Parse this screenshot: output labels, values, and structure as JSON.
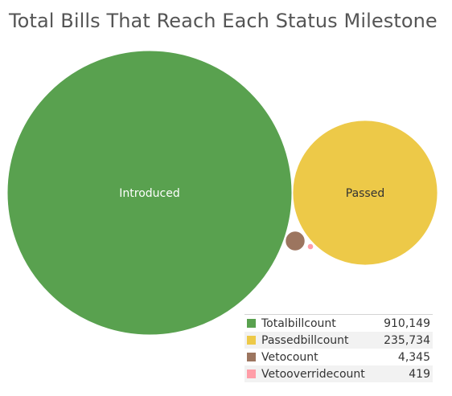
{
  "chart_data": {
    "type": "bubble",
    "title": "Total Bills That Reach Each Status Milestone",
    "series": [
      {
        "name": "Totalbillcount",
        "label": "Introduced",
        "value": 910149,
        "value_text": "910,149",
        "color": "#59a14f",
        "label_color": "#ffffff"
      },
      {
        "name": "Passedbillcount",
        "label": "Passed",
        "value": 235734,
        "value_text": "235,734",
        "color": "#edc948",
        "label_color": "#333333"
      },
      {
        "name": "Vetocount",
        "label": "",
        "value": 4345,
        "value_text": "4,345",
        "color": "#9c755f",
        "label_color": "#333333"
      },
      {
        "name": "Vetooverridecount",
        "label": "",
        "value": 419,
        "value_text": "419",
        "color": "#ff9da7",
        "label_color": "#333333"
      }
    ]
  }
}
